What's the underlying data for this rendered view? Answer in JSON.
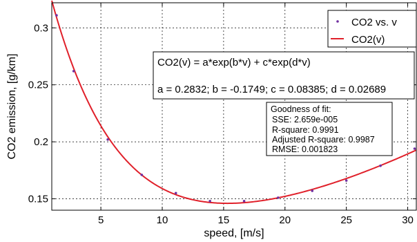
{
  "chart_data": {
    "type": "scatter",
    "title": "",
    "xlabel": "speed, [m/s]",
    "ylabel": "CO2 emission, [g/km]",
    "xlim": [
      1,
      30.7
    ],
    "ylim": [
      0.14,
      0.322
    ],
    "xticks": [
      5,
      10,
      15,
      20,
      25,
      30
    ],
    "yticks": [
      0.15,
      0.2,
      0.25,
      0.3
    ],
    "xtick_labels": [
      "5",
      "10",
      "15",
      "20",
      "25",
      "30"
    ],
    "ytick_labels": [
      "0.15",
      "0.2",
      "0.25",
      "0.3"
    ],
    "grid": true,
    "legend_position": "top-right",
    "series": [
      {
        "name": "CO2 vs. v",
        "kind": "points",
        "color": "#7030a0",
        "x": [
          1.39,
          2.78,
          5.56,
          8.33,
          11.11,
          13.89,
          16.67,
          19.44,
          22.22,
          25.0,
          27.78,
          30.56
        ],
        "y": [
          0.311,
          0.262,
          0.202,
          0.171,
          0.155,
          0.148,
          0.148,
          0.151,
          0.157,
          0.166,
          0.179,
          0.194
        ]
      },
      {
        "name": "CO2(v)",
        "kind": "fit-line",
        "color": "#e0202a",
        "model": {
          "a": 0.2832,
          "b": -0.1749,
          "c": 0.08385,
          "d": 0.02689
        }
      }
    ],
    "annotations": {
      "equation": "CO2(v) = a*exp(b*v) + c*exp(d*v)",
      "coefficients": "a = 0.2832; b = -0.1749; c = 0.08385; d = 0.02689",
      "goodness_title": "Goodness of fit:",
      "goodness_lines": [
        "SSE: 2.659e-005",
        "R-square: 0.9991",
        "Adjusted R-square: 0.9987",
        "RMSE: 0.001823"
      ]
    }
  }
}
